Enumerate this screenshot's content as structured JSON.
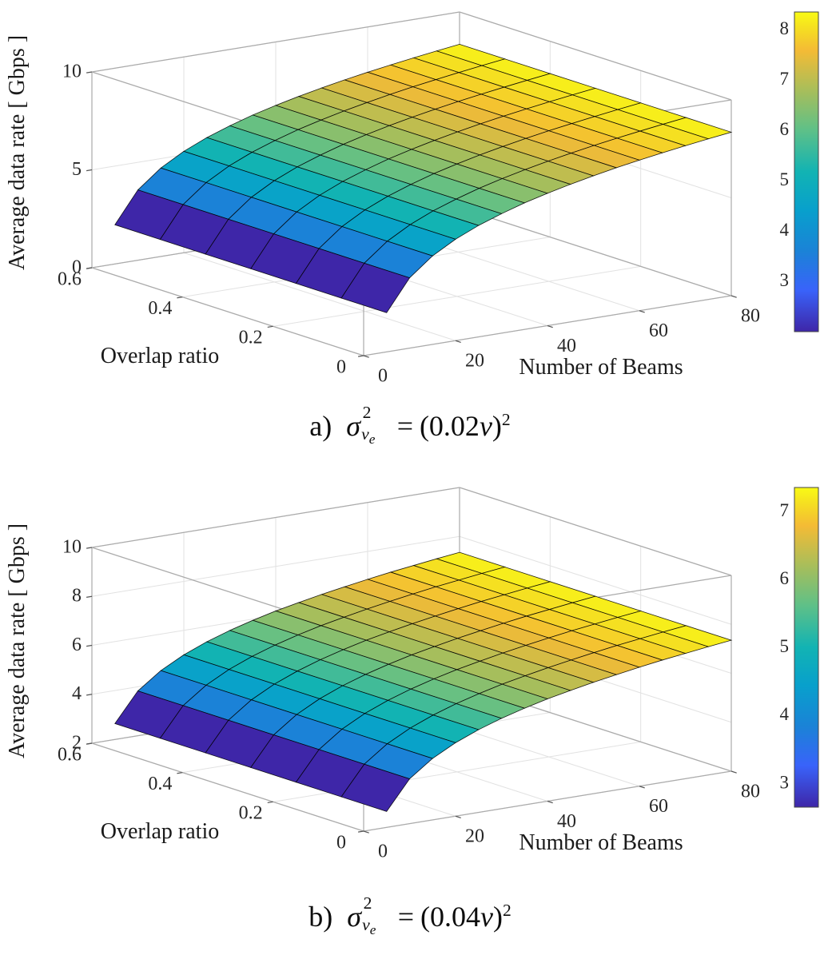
{
  "style": {
    "background": "#ffffff",
    "text_color": "#262626",
    "grid_color": "#e2e2e2",
    "box_color": "#ababab",
    "mesh_edge_color": "#000000",
    "parula_stops": [
      {
        "t": 0.0,
        "color": "#3e26a8"
      },
      {
        "t": 0.13,
        "color": "#3963fa"
      },
      {
        "t": 0.25,
        "color": "#1b82d7"
      },
      {
        "t": 0.38,
        "color": "#08a0cc"
      },
      {
        "t": 0.5,
        "color": "#12b3b3"
      },
      {
        "t": 0.63,
        "color": "#5ec088"
      },
      {
        "t": 0.75,
        "color": "#a5be5c"
      },
      {
        "t": 0.88,
        "color": "#f4bb35"
      },
      {
        "t": 0.95,
        "color": "#f5df21"
      },
      {
        "t": 1.0,
        "color": "#f9fb15"
      }
    ]
  },
  "captions": [
    {
      "label": "a)",
      "sigma": "σ",
      "sup": "2",
      "sub_main": "v",
      "sub_sub": "e",
      "eq": "=",
      "rhs_pre": "(0.02",
      "rhs_var": "v",
      "rhs_post": ")",
      "rhs_sup": "2"
    },
    {
      "label": "b)",
      "sigma": "σ",
      "sup": "2",
      "sub_main": "v",
      "sub_sub": "e",
      "eq": "=",
      "rhs_pre": "(0.04",
      "rhs_var": "v",
      "rhs_post": ")",
      "rhs_sup": "2"
    }
  ],
  "chart_data": [
    {
      "type": "surface",
      "title": "a) σ_ve² = (0.02v)²",
      "xlabel": "Number of Beams",
      "ylabel": "Overlap ratio",
      "zlabel": "Average data rate [ Gbps ]",
      "colormap": "parula",
      "grid": true,
      "xlim": [
        0,
        80
      ],
      "ylim": [
        0,
        0.6
      ],
      "zlim": [
        0,
        10
      ],
      "x_ticks": [
        0,
        20,
        40,
        60,
        80
      ],
      "y_ticks": [
        0,
        0.2,
        0.4,
        0.6
      ],
      "z_ticks": [
        0,
        5,
        10
      ],
      "clim": [
        2.0,
        8.35
      ],
      "colorbar_ticks": [
        3,
        4,
        5,
        6,
        7,
        8
      ],
      "x": [
        5,
        10,
        15,
        20,
        25,
        30,
        35,
        40,
        45,
        50,
        55,
        60,
        65,
        70,
        75,
        80
      ],
      "y": [
        0,
        0.1,
        0.2,
        0.3,
        0.4,
        0.5,
        0.6
      ],
      "z": [
        [
          2.0,
          3.59,
          4.52,
          5.18,
          5.69,
          6.1,
          6.46,
          6.76,
          7.03,
          7.27,
          7.49,
          7.69,
          7.87,
          8.04,
          8.2,
          8.35
        ],
        [
          2.0,
          3.59,
          4.52,
          5.18,
          5.69,
          6.1,
          6.46,
          6.76,
          7.03,
          7.27,
          7.49,
          7.69,
          7.87,
          8.04,
          8.2,
          8.35
        ],
        [
          2.0,
          3.59,
          4.52,
          5.18,
          5.69,
          6.1,
          6.46,
          6.76,
          7.03,
          7.27,
          7.49,
          7.69,
          7.87,
          8.04,
          8.2,
          8.35
        ],
        [
          2.0,
          3.59,
          4.52,
          5.18,
          5.69,
          6.1,
          6.46,
          6.76,
          7.03,
          7.27,
          7.49,
          7.69,
          7.87,
          8.04,
          8.2,
          8.35
        ],
        [
          2.0,
          3.59,
          4.52,
          5.18,
          5.69,
          6.1,
          6.46,
          6.76,
          7.03,
          7.27,
          7.49,
          7.69,
          7.87,
          8.04,
          8.2,
          8.35
        ],
        [
          2.0,
          3.59,
          4.52,
          5.18,
          5.69,
          6.1,
          6.46,
          6.76,
          7.03,
          7.27,
          7.49,
          7.69,
          7.87,
          8.04,
          8.2,
          8.35
        ],
        [
          2.0,
          3.59,
          4.52,
          5.18,
          5.69,
          6.1,
          6.46,
          6.76,
          7.03,
          7.27,
          7.49,
          7.69,
          7.87,
          8.04,
          8.2,
          8.35
        ]
      ]
    },
    {
      "type": "surface",
      "title": "b) σ_ve² = (0.04v)²",
      "xlabel": "Number of Beams",
      "ylabel": "Overlap ratio",
      "zlabel": "Average data rate [ Gbps ]",
      "colormap": "parula",
      "grid": true,
      "xlim": [
        0,
        80
      ],
      "ylim": [
        0,
        0.6
      ],
      "zlim": [
        2,
        10
      ],
      "x_ticks": [
        0,
        20,
        40,
        60,
        80
      ],
      "y_ticks": [
        0,
        0.2,
        0.4,
        0.6
      ],
      "z_ticks": [
        2,
        4,
        6,
        8,
        10
      ],
      "clim": [
        2.65,
        7.35
      ],
      "colorbar_ticks": [
        3,
        4,
        5,
        6,
        7
      ],
      "x": [
        5,
        10,
        15,
        20,
        25,
        30,
        35,
        40,
        45,
        50,
        55,
        60,
        65,
        70,
        75,
        80
      ],
      "y": [
        0,
        0.1,
        0.2,
        0.3,
        0.4,
        0.5,
        0.6
      ],
      "z": [
        [
          2.65,
          3.83,
          4.51,
          5.0,
          5.38,
          5.69,
          5.95,
          6.18,
          6.37,
          6.55,
          6.71,
          6.86,
          7.0,
          7.12,
          7.24,
          7.35
        ],
        [
          2.65,
          3.83,
          4.51,
          5.0,
          5.38,
          5.69,
          5.95,
          6.18,
          6.37,
          6.55,
          6.71,
          6.86,
          7.0,
          7.12,
          7.24,
          7.35
        ],
        [
          2.65,
          3.83,
          4.51,
          5.0,
          5.38,
          5.69,
          5.95,
          6.18,
          6.37,
          6.55,
          6.71,
          6.86,
          7.0,
          7.12,
          7.24,
          7.35
        ],
        [
          2.65,
          3.83,
          4.51,
          5.0,
          5.38,
          5.69,
          5.95,
          6.18,
          6.37,
          6.55,
          6.71,
          6.86,
          7.0,
          7.12,
          7.24,
          7.35
        ],
        [
          2.65,
          3.83,
          4.51,
          5.0,
          5.38,
          5.69,
          5.95,
          6.18,
          6.37,
          6.55,
          6.71,
          6.86,
          7.0,
          7.12,
          7.24,
          7.35
        ],
        [
          2.65,
          3.83,
          4.51,
          5.0,
          5.38,
          5.69,
          5.95,
          6.18,
          6.37,
          6.55,
          6.71,
          6.86,
          7.0,
          7.12,
          7.24,
          7.35
        ],
        [
          2.65,
          3.83,
          4.51,
          5.0,
          5.38,
          5.69,
          5.95,
          6.18,
          6.37,
          6.55,
          6.71,
          6.86,
          7.0,
          7.12,
          7.24,
          7.35
        ]
      ]
    }
  ]
}
